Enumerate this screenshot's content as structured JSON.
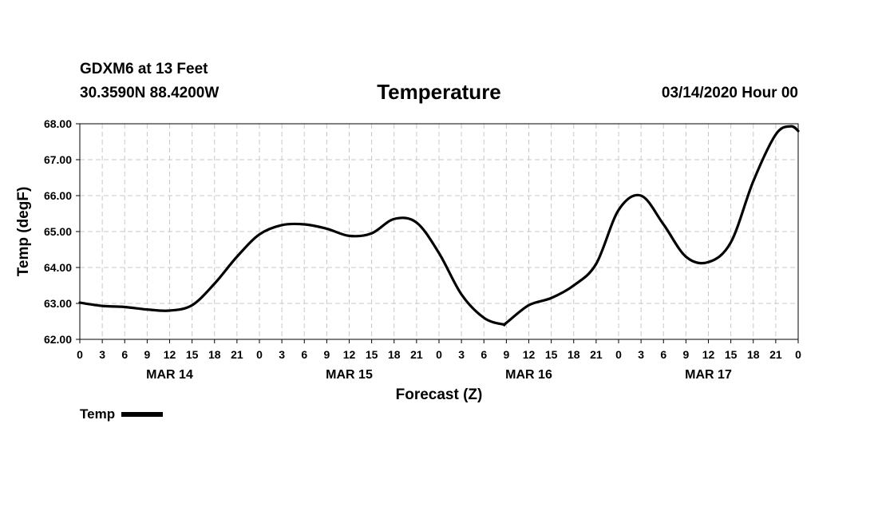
{
  "header": {
    "station": "GDXM6 at 13 Feet",
    "coords": "30.3590N 88.4200W",
    "run": "03/14/2020 Hour 00"
  },
  "colors": {
    "line": "#000000",
    "grid": "#c8c8c8",
    "background": "#ffffff"
  },
  "chart_data": {
    "type": "line",
    "title": "Temperature",
    "xlabel": "Forecast (Z)",
    "ylabel": "Temp (degF)",
    "xlim": [
      0,
      96
    ],
    "ylim": [
      62.0,
      68.0
    ],
    "x_unit": "hours since 03/14/2020 00Z",
    "grid": true,
    "legend_position": "bottom-left",
    "ytick_values": [
      62,
      63,
      64,
      65,
      66,
      67,
      68
    ],
    "ytick_labels": [
      "62.00",
      "63.00",
      "64.00",
      "65.00",
      "66.00",
      "67.00",
      "68.00"
    ],
    "xtick_values": [
      0,
      3,
      6,
      9,
      12,
      15,
      18,
      21,
      24,
      27,
      30,
      33,
      36,
      39,
      42,
      45,
      48,
      51,
      54,
      57,
      60,
      63,
      66,
      69,
      72,
      75,
      78,
      81,
      84,
      87,
      90,
      93,
      96
    ],
    "xtick_labels": [
      "0",
      "3",
      "6",
      "9",
      "12",
      "15",
      "18",
      "21",
      "0",
      "3",
      "6",
      "9",
      "12",
      "15",
      "18",
      "21",
      "0",
      "3",
      "6",
      "9",
      "12",
      "15",
      "18",
      "21",
      "0",
      "3",
      "6",
      "9",
      "12",
      "15",
      "18",
      "21",
      "0"
    ],
    "day_labels": [
      {
        "x": 12,
        "label": "MAR 14"
      },
      {
        "x": 36,
        "label": "MAR 15"
      },
      {
        "x": 60,
        "label": "MAR 16"
      },
      {
        "x": 84,
        "label": "MAR 17"
      }
    ],
    "series": [
      {
        "name": "Temp",
        "x": [
          0,
          3,
          6,
          9,
          12,
          15,
          18,
          21,
          24,
          27,
          30,
          33,
          36,
          39,
          42,
          45,
          48,
          51,
          54,
          56.5,
          57,
          60,
          63,
          66,
          69,
          72,
          75,
          78,
          81,
          84,
          87,
          90,
          93,
          95,
          96
        ],
        "values": [
          63.02,
          62.93,
          62.9,
          62.83,
          62.8,
          62.95,
          63.55,
          64.3,
          64.92,
          65.18,
          65.2,
          65.08,
          64.88,
          64.95,
          65.35,
          65.25,
          64.4,
          63.25,
          62.6,
          62.42,
          62.46,
          62.95,
          63.15,
          63.5,
          64.1,
          65.6,
          66.0,
          65.2,
          64.3,
          64.15,
          64.7,
          66.4,
          67.7,
          67.93,
          67.8
        ]
      }
    ]
  }
}
